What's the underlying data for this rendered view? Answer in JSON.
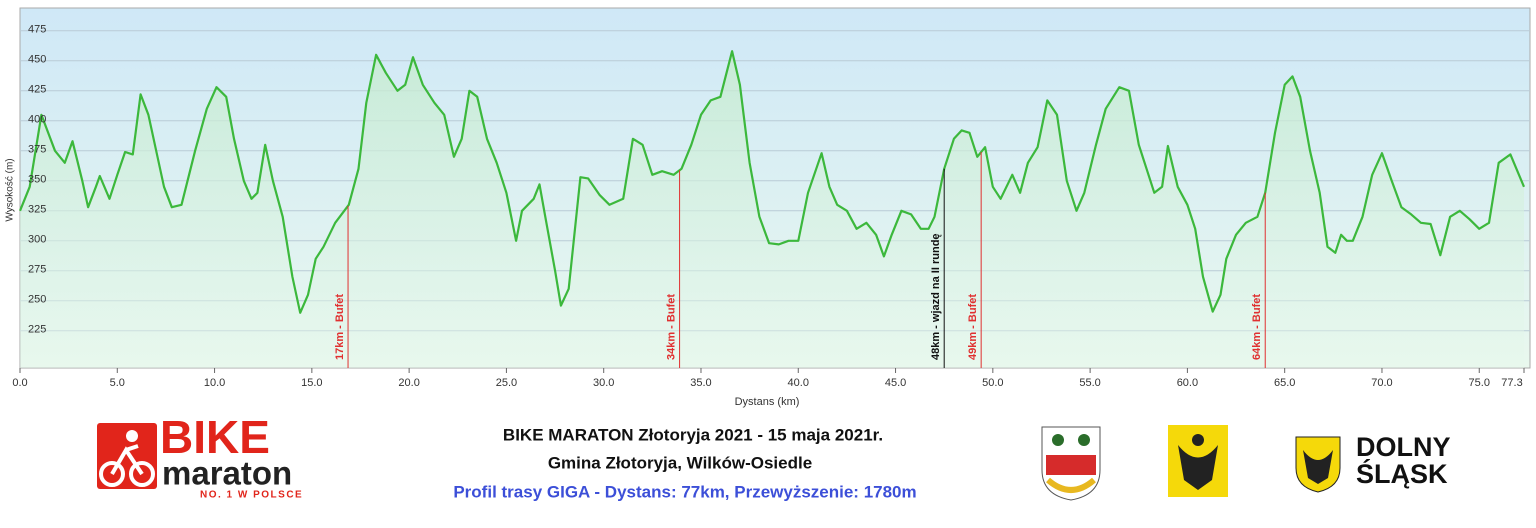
{
  "chart_data": {
    "type": "area",
    "title": "BIKE MARATON Złotoryja 2021 - 15 maja 2021r.",
    "subtitle": "Gmina Złotoryja, Wilków-Osiedle",
    "caption": "Profil trasy GIGA - Dystans: 77km, Przewyższenie: 1780m",
    "xlabel": "Dystans  (km)",
    "ylabel": "Wysokość (m)",
    "xlim": [
      0,
      77.3
    ],
    "ylim": [
      194,
      494
    ],
    "xticks": [
      {
        "value": 0,
        "label": "0.0"
      },
      {
        "value": 5,
        "label": "5.0"
      },
      {
        "value": 10,
        "label": "10.0"
      },
      {
        "value": 15,
        "label": "15.0"
      },
      {
        "value": 20,
        "label": "20.0"
      },
      {
        "value": 25,
        "label": "25.0"
      },
      {
        "value": 30,
        "label": "30.0"
      },
      {
        "value": 35,
        "label": "35.0"
      },
      {
        "value": 40,
        "label": "40.0"
      },
      {
        "value": 45,
        "label": "45.0"
      },
      {
        "value": 50,
        "label": "50.0"
      },
      {
        "value": 55,
        "label": "55.0"
      },
      {
        "value": 60,
        "label": "60.0"
      },
      {
        "value": 65,
        "label": "65.0"
      },
      {
        "value": 70,
        "label": "70.0"
      },
      {
        "value": 75,
        "label": "75.0"
      },
      77.3
    ],
    "yticks": [
      225,
      250,
      275,
      300,
      325,
      350,
      375,
      400,
      425,
      450,
      475
    ],
    "grid": true,
    "series": [
      {
        "name": "Wysokość",
        "color": "#3cb83c",
        "x": [
          0,
          0.5,
          1.1,
          1.8,
          2.3,
          2.7,
          3.2,
          3.5,
          3.9,
          4.1,
          4.6,
          5.0,
          5.4,
          5.8,
          6.2,
          6.6,
          7.0,
          7.4,
          7.8,
          8.3,
          9.0,
          9.6,
          10.1,
          10.6,
          11.0,
          11.5,
          11.9,
          12.2,
          12.6,
          13.0,
          13.5,
          14.0,
          14.4,
          14.8,
          15.2,
          15.6,
          16.2,
          16.9,
          17.4,
          17.8,
          18.3,
          18.8,
          19.4,
          19.8,
          20.2,
          20.7,
          21.3,
          21.8,
          22.3,
          22.7,
          23.1,
          23.5,
          24.0,
          24.5,
          25.0,
          25.5,
          25.8,
          26.4,
          26.7,
          27.0,
          27.5,
          27.8,
          28.2,
          28.8,
          29.2,
          29.8,
          30.3,
          31.0,
          31.5,
          32.0,
          32.5,
          33.0,
          33.6,
          34.0,
          34.5,
          35.0,
          35.5,
          36.0,
          36.6,
          37.0,
          37.5,
          38.0,
          38.5,
          39.0,
          39.5,
          40.0,
          40.5,
          41.2,
          41.6,
          42.0,
          42.5,
          43.0,
          43.5,
          44.0,
          44.4,
          44.8,
          45.3,
          45.8,
          46.3,
          46.7,
          47.0,
          47.5,
          48.0,
          48.4,
          48.8,
          49.2,
          49.6,
          50.0,
          50.4,
          51.0,
          51.4,
          51.8,
          52.3,
          52.8,
          53.3,
          53.8,
          54.3,
          54.7,
          55.3,
          55.8,
          56.5,
          57.0,
          57.5,
          58.0,
          58.3,
          58.7,
          59.0,
          59.5,
          60.0,
          60.4,
          60.8,
          61.3,
          61.7,
          62.0,
          62.5,
          63.0,
          63.6,
          64.0,
          64.5,
          65.0,
          65.4,
          65.8,
          66.3,
          66.8,
          67.2,
          67.6,
          67.9,
          68.2,
          68.5,
          69.0,
          69.5,
          70.0,
          70.5,
          71.0,
          71.5,
          72.0,
          72.5,
          73.0,
          73.5,
          74.0,
          74.5,
          75.0,
          75.5,
          76.0,
          76.6,
          77.3
        ],
        "values": [
          325,
          345,
          405,
          375,
          365,
          383,
          350,
          328,
          345,
          354,
          335,
          355,
          374,
          372,
          422,
          405,
          375,
          345,
          328,
          330,
          375,
          410,
          428,
          420,
          385,
          350,
          335,
          340,
          380,
          350,
          320,
          270,
          240,
          255,
          285,
          295,
          315,
          330,
          360,
          415,
          455,
          440,
          425,
          430,
          453,
          430,
          415,
          405,
          370,
          385,
          425,
          420,
          385,
          365,
          340,
          300,
          325,
          335,
          347,
          320,
          275,
          246,
          260,
          353,
          352,
          338,
          330,
          335,
          385,
          380,
          355,
          358,
          355,
          360,
          380,
          405,
          417,
          420,
          458,
          430,
          365,
          320,
          298,
          297,
          300,
          300,
          340,
          373,
          345,
          330,
          325,
          310,
          315,
          305,
          287,
          305,
          325,
          322,
          310,
          310,
          320,
          360,
          385,
          392,
          390,
          370,
          378,
          345,
          335,
          355,
          340,
          365,
          378,
          417,
          405,
          350,
          325,
          340,
          380,
          410,
          428,
          425,
          380,
          355,
          340,
          345,
          379,
          345,
          330,
          310,
          270,
          241,
          255,
          285,
          305,
          315,
          320,
          340,
          390,
          430,
          437,
          420,
          375,
          340,
          295,
          290,
          305,
          300,
          300,
          320,
          355,
          373,
          350,
          328,
          322,
          315,
          314,
          288,
          320,
          325,
          318,
          310,
          315,
          365,
          372,
          345
        ]
      }
    ],
    "annotations": [
      {
        "text": "17km - Bufet",
        "x": 16.86,
        "color": "#e03030"
      },
      {
        "text": "34km - Bufet",
        "x": 33.9,
        "color": "#e03030"
      },
      {
        "text": "48km - wjazd na II rundę",
        "x": 47.5,
        "color": "#111111"
      },
      {
        "text": "49km - Bufet",
        "x": 49.4,
        "color": "#e03030"
      },
      {
        "text": "64km - Bufet",
        "x": 64.0,
        "color": "#e03030"
      }
    ]
  },
  "logos": {
    "bike": "BIKE",
    "maraton": "maraton",
    "slogan": "NO. 1 W POLSCE",
    "region1": "DOLNY",
    "region2": "ŚLĄSK"
  }
}
